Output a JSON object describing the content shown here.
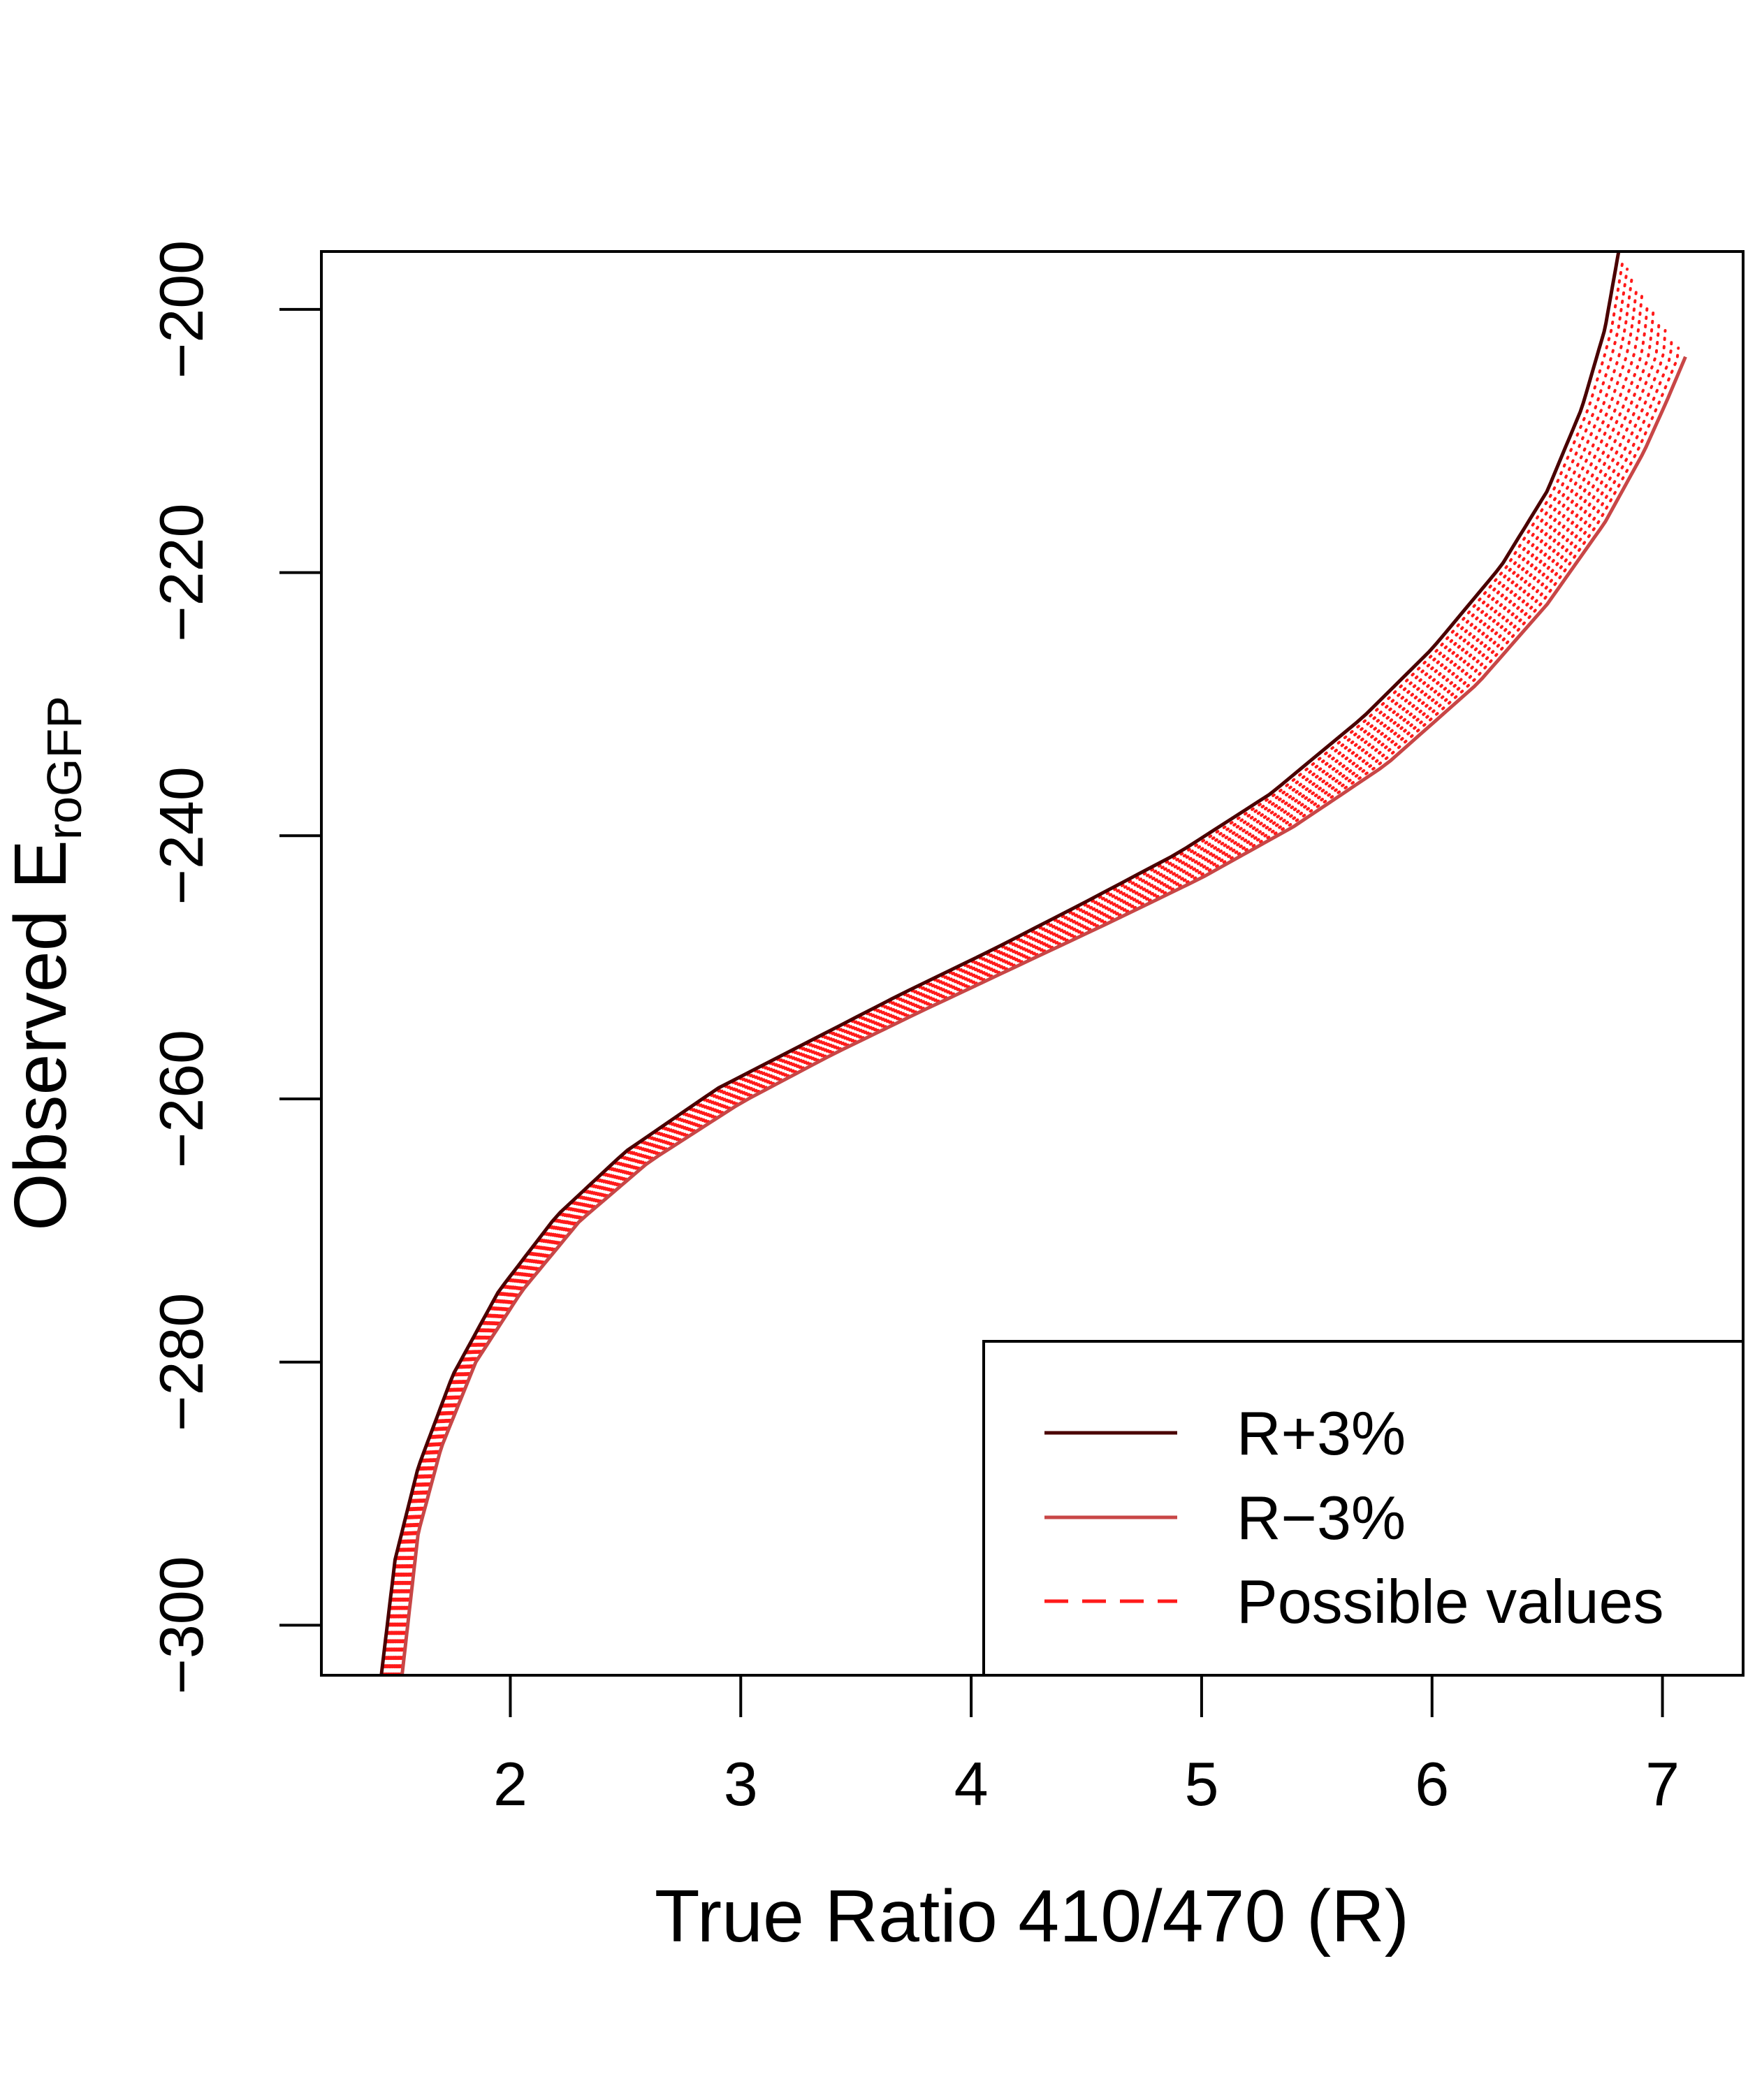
{
  "chart_data": {
    "type": "line",
    "title": "",
    "xlabel": "True Ratio 410/470 (R)",
    "ylabel": {
      "text": "Observed E",
      "subscript": "roGFP"
    },
    "xlim": [
      1.18,
      7.35
    ],
    "ylim": [
      -303.8,
      -195.6
    ],
    "x_ticks": [
      2,
      3,
      4,
      5,
      6,
      7
    ],
    "y_ticks": [
      -300,
      -280,
      -260,
      -240,
      -220,
      -200
    ],
    "x_tick_labels": [
      "2",
      "3",
      "4",
      "5",
      "6",
      "7"
    ],
    "y_tick_labels": [
      "−300",
      "−280",
      "−260",
      "−240",
      "−220",
      "−200"
    ],
    "grid": false,
    "legend": {
      "position": "bottom-right",
      "entries": [
        {
          "label": "R+3%",
          "color": "#4a0000",
          "style": "solid"
        },
        {
          "label": "R−3%",
          "color": "#c84646",
          "style": "solid"
        },
        {
          "label": "Possible values",
          "color": "#ff1a1a",
          "style": "dashed"
        }
      ]
    },
    "series": [
      {
        "name": "R+3%",
        "color": "#4a0000",
        "style": "solid",
        "x": [
          1.44,
          1.5,
          1.6,
          1.75,
          1.95,
          2.2,
          2.5,
          2.9,
          3.3,
          3.7,
          4.1,
          4.5,
          4.9,
          5.3,
          5.7,
          6.0,
          6.3,
          6.5,
          6.65,
          6.75,
          6.81
        ],
        "y": [
          -303.8,
          -295.0,
          -288.0,
          -281.0,
          -274.6,
          -268.9,
          -264.0,
          -259.2,
          -255.6,
          -252.0,
          -248.6,
          -245.0,
          -241.3,
          -236.8,
          -231.0,
          -225.8,
          -219.5,
          -213.8,
          -207.5,
          -201.5,
          -195.6
        ]
      },
      {
        "name": "R−3%",
        "color": "#c84646",
        "style": "solid",
        "x": [
          1.53,
          1.6,
          1.7,
          1.85,
          2.05,
          2.3,
          2.6,
          3.0,
          3.4,
          3.8,
          4.2,
          4.6,
          5.0,
          5.4,
          5.8,
          6.2,
          6.5,
          6.75,
          6.92,
          7.02,
          7.1
        ],
        "y": [
          -303.8,
          -293.0,
          -286.5,
          -280.0,
          -274.6,
          -269.3,
          -264.8,
          -260.3,
          -256.6,
          -253.2,
          -249.9,
          -246.6,
          -243.2,
          -239.3,
          -234.6,
          -228.4,
          -222.4,
          -216.2,
          -210.8,
          -206.9,
          -203.6
        ]
      }
    ],
    "band": {
      "name": "Possible values",
      "color": "#ff1a1a",
      "style": "dotted",
      "count": 12
    }
  }
}
